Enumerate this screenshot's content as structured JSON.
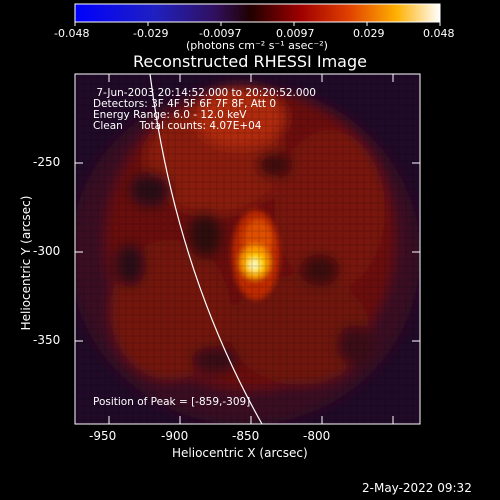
{
  "colorbar": {
    "ticks": [
      "-0.048",
      "-0.029",
      "-0.0097",
      "0.0097",
      "0.029",
      "0.048"
    ],
    "unit_label": "(photons cm⁻² s⁻¹ asec⁻²)"
  },
  "plot": {
    "title": "Reconstructed RHESSI Image",
    "xlabel": "Heliocentric X (arcsec)",
    "ylabel": "Heliocentric Y (arcsec)",
    "xticks": [
      "-950",
      "-900",
      "-850",
      "-800"
    ],
    "yticks": [
      "-250",
      "-300",
      "-350"
    ],
    "info_lines": [
      " 7-Jun-2003 20:14:52.000 to 20:20:52.000",
      "Detectors: 3F 4F 5F 6F 7F 8F, Att 0",
      "Energy Range: 6.0 - 12.0 keV",
      "Clean     Total counts: 4.07E+04"
    ],
    "peak_text": "Position of Peak = [-859,-309]"
  },
  "footer": {
    "timestamp": "2-May-2022 09:32"
  },
  "colors": {
    "background": "#000000",
    "foreground": "#ffffff"
  }
}
